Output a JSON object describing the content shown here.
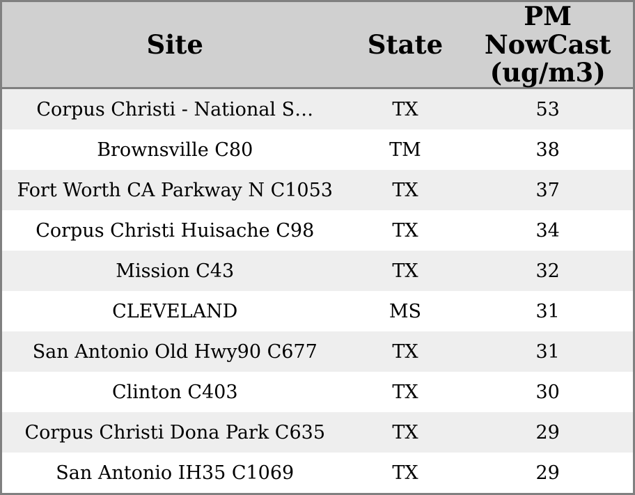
{
  "chart_data": {
    "type": "table",
    "title": "",
    "columns": [
      "Site",
      "State",
      "PM NowCast (ug/m3)"
    ],
    "rows": [
      {
        "site": "Corpus Christi - National S…",
        "state": "TX",
        "pm_nowcast": "53"
      },
      {
        "site": "Brownsville C80",
        "state": "TM",
        "pm_nowcast": "38"
      },
      {
        "site": "Fort Worth CA Parkway N C1053",
        "state": "TX",
        "pm_nowcast": "37"
      },
      {
        "site": "Corpus Christi Huisache C98",
        "state": "TX",
        "pm_nowcast": "34"
      },
      {
        "site": "Mission C43",
        "state": "TX",
        "pm_nowcast": "32"
      },
      {
        "site": "CLEVELAND",
        "state": "MS",
        "pm_nowcast": "31"
      },
      {
        "site": "San Antonio Old Hwy90 C677",
        "state": "TX",
        "pm_nowcast": "31"
      },
      {
        "site": "Clinton C403",
        "state": "TX",
        "pm_nowcast": "30"
      },
      {
        "site": "Corpus Christi Dona Park C635",
        "state": "TX",
        "pm_nowcast": "29"
      },
      {
        "site": "San Antonio IH35 C1069",
        "state": "TX",
        "pm_nowcast": "29"
      }
    ],
    "layout": {
      "grid": "off",
      "row_striping": "alternating",
      "header_position": "top"
    },
    "colors": {
      "header_background": "#d0d0d0",
      "stripe_row_background": "#eeeeee",
      "plain_row_background": "#ffffff",
      "outer_border": "#808080",
      "header_divider": "#7f7f7f",
      "text": "#000000"
    }
  }
}
